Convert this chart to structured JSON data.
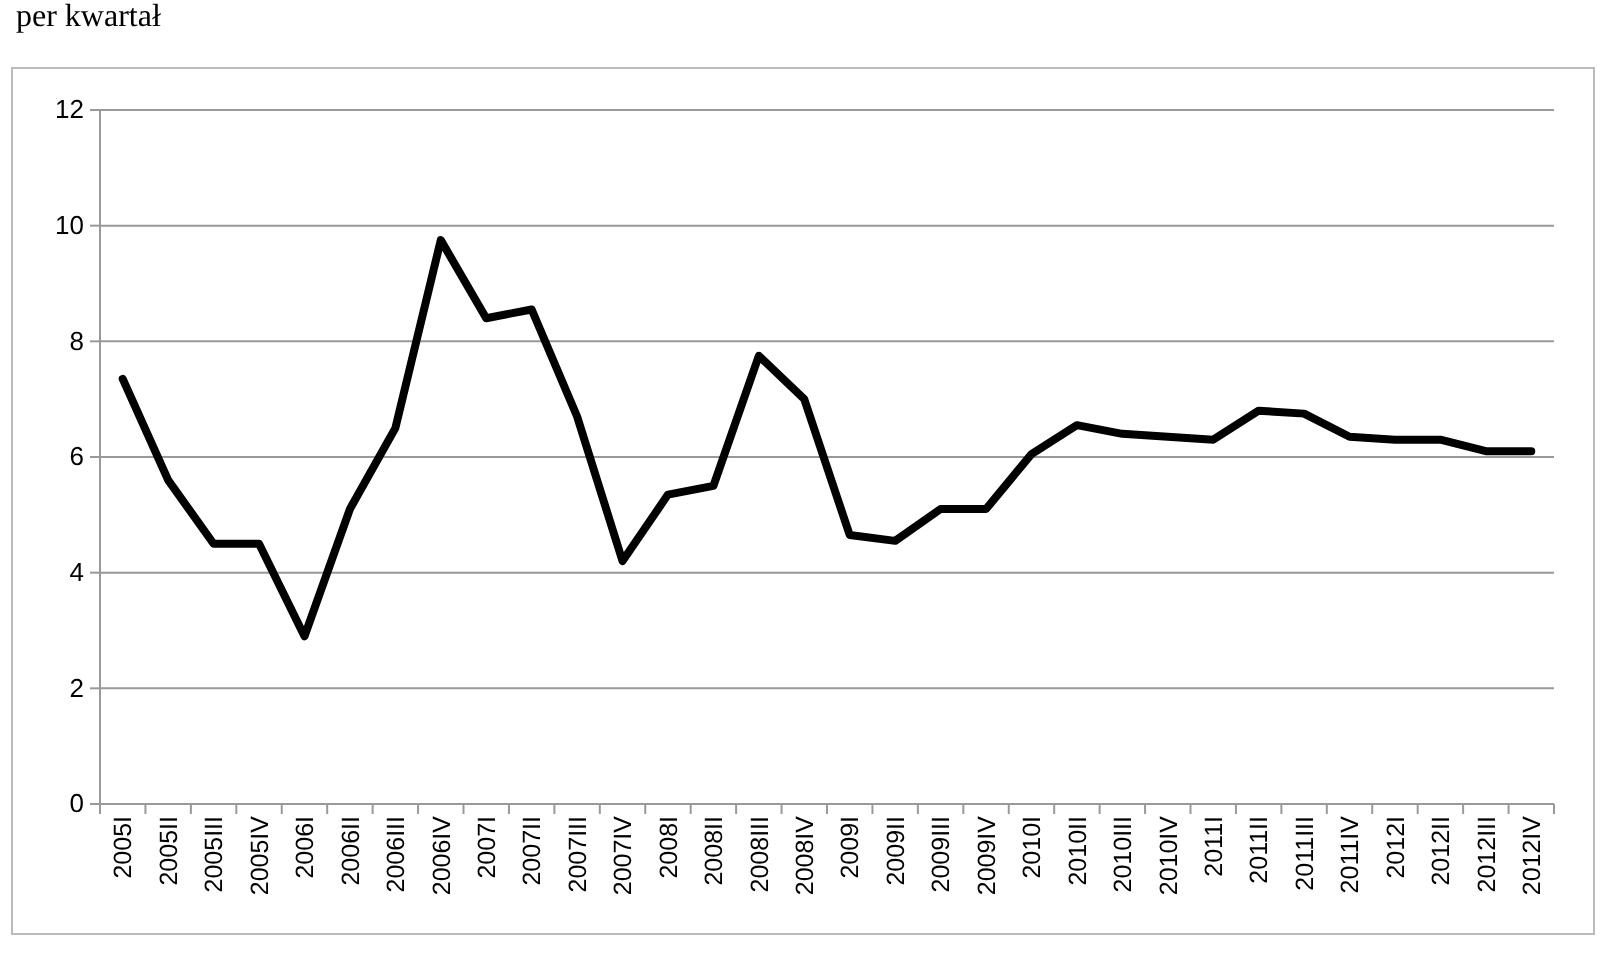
{
  "chart_data": {
    "type": "line",
    "title": "per kwartał",
    "categories": [
      "2005I",
      "2005II",
      "2005III",
      "2005IV",
      "2006I",
      "2006II",
      "2006III",
      "2006IV",
      "2007I",
      "2007II",
      "2007III",
      "2007IV",
      "2008I",
      "2008II",
      "2008III",
      "2008IV",
      "2009I",
      "2009II",
      "2009III",
      "2009IV",
      "2010I",
      "2010II",
      "2010III",
      "2010IV",
      "2011I",
      "2011II",
      "2011III",
      "2011IV",
      "2012I",
      "2012II",
      "2012III",
      "2012IV"
    ],
    "series": [
      {
        "color": "#000000",
        "values": [
          7.35,
          5.6,
          4.5,
          4.5,
          2.9,
          5.1,
          6.5,
          9.75,
          8.4,
          8.55,
          6.7,
          4.2,
          5.35,
          5.5,
          7.75,
          7.0,
          4.65,
          4.55,
          5.1,
          5.1,
          6.05,
          6.55,
          6.4,
          6.35,
          6.3,
          6.8,
          6.75,
          6.35,
          6.3,
          6.3,
          6.1,
          6.1
        ]
      }
    ],
    "ylim": [
      0,
      12
    ],
    "yticks": [
      0,
      2,
      4,
      6,
      8,
      10,
      12
    ],
    "grid": "y",
    "marker": "none",
    "line_style": "solid"
  }
}
